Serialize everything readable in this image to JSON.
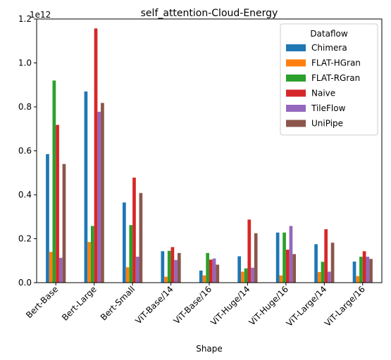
{
  "chart_data": {
    "type": "bar",
    "title": "self_attention-Cloud-Energy",
    "xlabel": "Shape",
    "ylabel": "",
    "y_scale_label": "1e12",
    "ylim": [
      0,
      1.2
    ],
    "yticks": [
      0.0,
      0.2,
      0.4,
      0.6,
      0.8,
      1.0,
      1.2
    ],
    "ytick_labels": [
      "0.0",
      "0.2",
      "0.4",
      "0.6",
      "0.8",
      "1.0",
      "1.2"
    ],
    "grid": false,
    "legend_title": "Dataflow",
    "legend_position": "top-right",
    "categories": [
      "Bert-Base",
      "Bert-Large",
      "Bert-Small",
      "ViT-Base/14",
      "ViT-Base/16",
      "ViT-Huge/14",
      "ViT-Huge/16",
      "ViT-Large/14",
      "ViT-Large/16"
    ],
    "series": [
      {
        "name": "Chimera",
        "color": "#1f77b4",
        "values": [
          0.585,
          0.87,
          0.365,
          0.143,
          0.055,
          0.12,
          0.228,
          0.175,
          0.096
        ]
      },
      {
        "name": "FLAT-HGran",
        "color": "#ff7f0e",
        "values": [
          0.14,
          0.185,
          0.07,
          0.027,
          0.033,
          0.05,
          0.033,
          0.048,
          0.03
        ]
      },
      {
        "name": "FLAT-RGran",
        "color": "#2ca02c",
        "values": [
          0.92,
          0.258,
          0.262,
          0.145,
          0.135,
          0.065,
          0.228,
          0.095,
          0.118
        ]
      },
      {
        "name": "Naive",
        "color": "#d62728",
        "values": [
          0.718,
          1.157,
          0.478,
          0.162,
          0.105,
          0.287,
          0.15,
          0.243,
          0.143
        ]
      },
      {
        "name": "TileFlow",
        "color": "#9467bd",
        "values": [
          0.113,
          0.778,
          0.118,
          0.103,
          0.11,
          0.068,
          0.258,
          0.05,
          0.118
        ]
      },
      {
        "name": "UniPipe",
        "color": "#8c564b",
        "values": [
          0.54,
          0.818,
          0.408,
          0.135,
          0.082,
          0.225,
          0.13,
          0.182,
          0.108
        ]
      }
    ]
  }
}
